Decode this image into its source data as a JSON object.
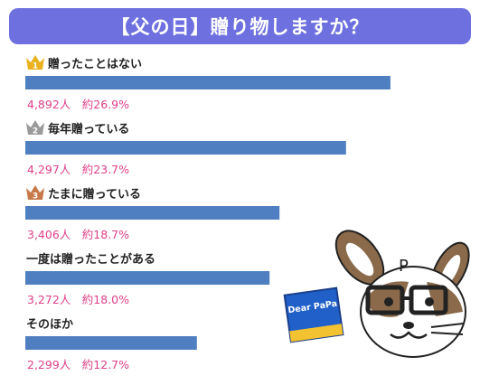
{
  "title": "【父の日】贈り物しますか？",
  "colors": {
    "title_bg": "#6e70e0",
    "bar": "#4f7fc0",
    "value_text": "#e0408a",
    "rank_gold": "#e9b21d",
    "rank_silver": "#9a9a9a",
    "rank_bronze": "#c8794a"
  },
  "chart_data": {
    "type": "bar",
    "orientation": "horizontal",
    "title": "【父の日】贈り物しますか？",
    "categories": [
      "贈ったことはない",
      "毎年贈っている",
      "たまに贈っている",
      "一度は贈ったことがある",
      "そのほか"
    ],
    "values": [
      4892,
      4297,
      3406,
      3272,
      2299
    ],
    "percent_labels": [
      "約26.9%",
      "約23.7%",
      "約18.7%",
      "約18.0%",
      "約12.7%"
    ],
    "count_labels": [
      "4,892人",
      "4,297人",
      "3,406人",
      "3,272人",
      "2,299人"
    ],
    "ranks": [
      "1",
      "2",
      "3",
      "",
      ""
    ],
    "xlim": [
      0,
      5300
    ],
    "grid": false,
    "legend": "none"
  },
  "mascot": {
    "icon": "rabbit-with-glasses-icon",
    "card_text": "Dear PaPa",
    "letter": "P"
  }
}
